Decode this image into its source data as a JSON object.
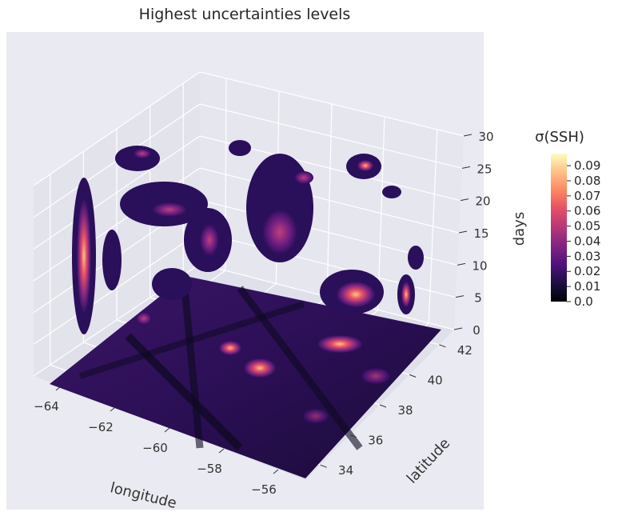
{
  "chart_data": {
    "type": "3d-contour",
    "title": "Highest uncertainties levels",
    "xlabel": "longitude",
    "ylabel": "latitude",
    "zlabel": "days",
    "x_ticks": [
      "−64",
      "−62",
      "−60",
      "−58",
      "−56"
    ],
    "y_ticks": [
      "34",
      "36",
      "38",
      "40",
      "42"
    ],
    "z_ticks": [
      "0",
      "5",
      "10",
      "15",
      "20",
      "25",
      "30"
    ],
    "xlim": [
      -65,
      -55
    ],
    "ylim": [
      33,
      43
    ],
    "zlim": [
      0,
      30
    ],
    "colormap": "magma",
    "colorbar": {
      "label": "σ(SSH)",
      "ticks": [
        "0.0",
        "0.01",
        "0.02",
        "0.03",
        "0.04",
        "0.05",
        "0.06",
        "0.07",
        "0.08",
        "0.09"
      ],
      "range": [
        0.0,
        0.098
      ]
    },
    "background": "#eaeaf2",
    "grid": true
  }
}
